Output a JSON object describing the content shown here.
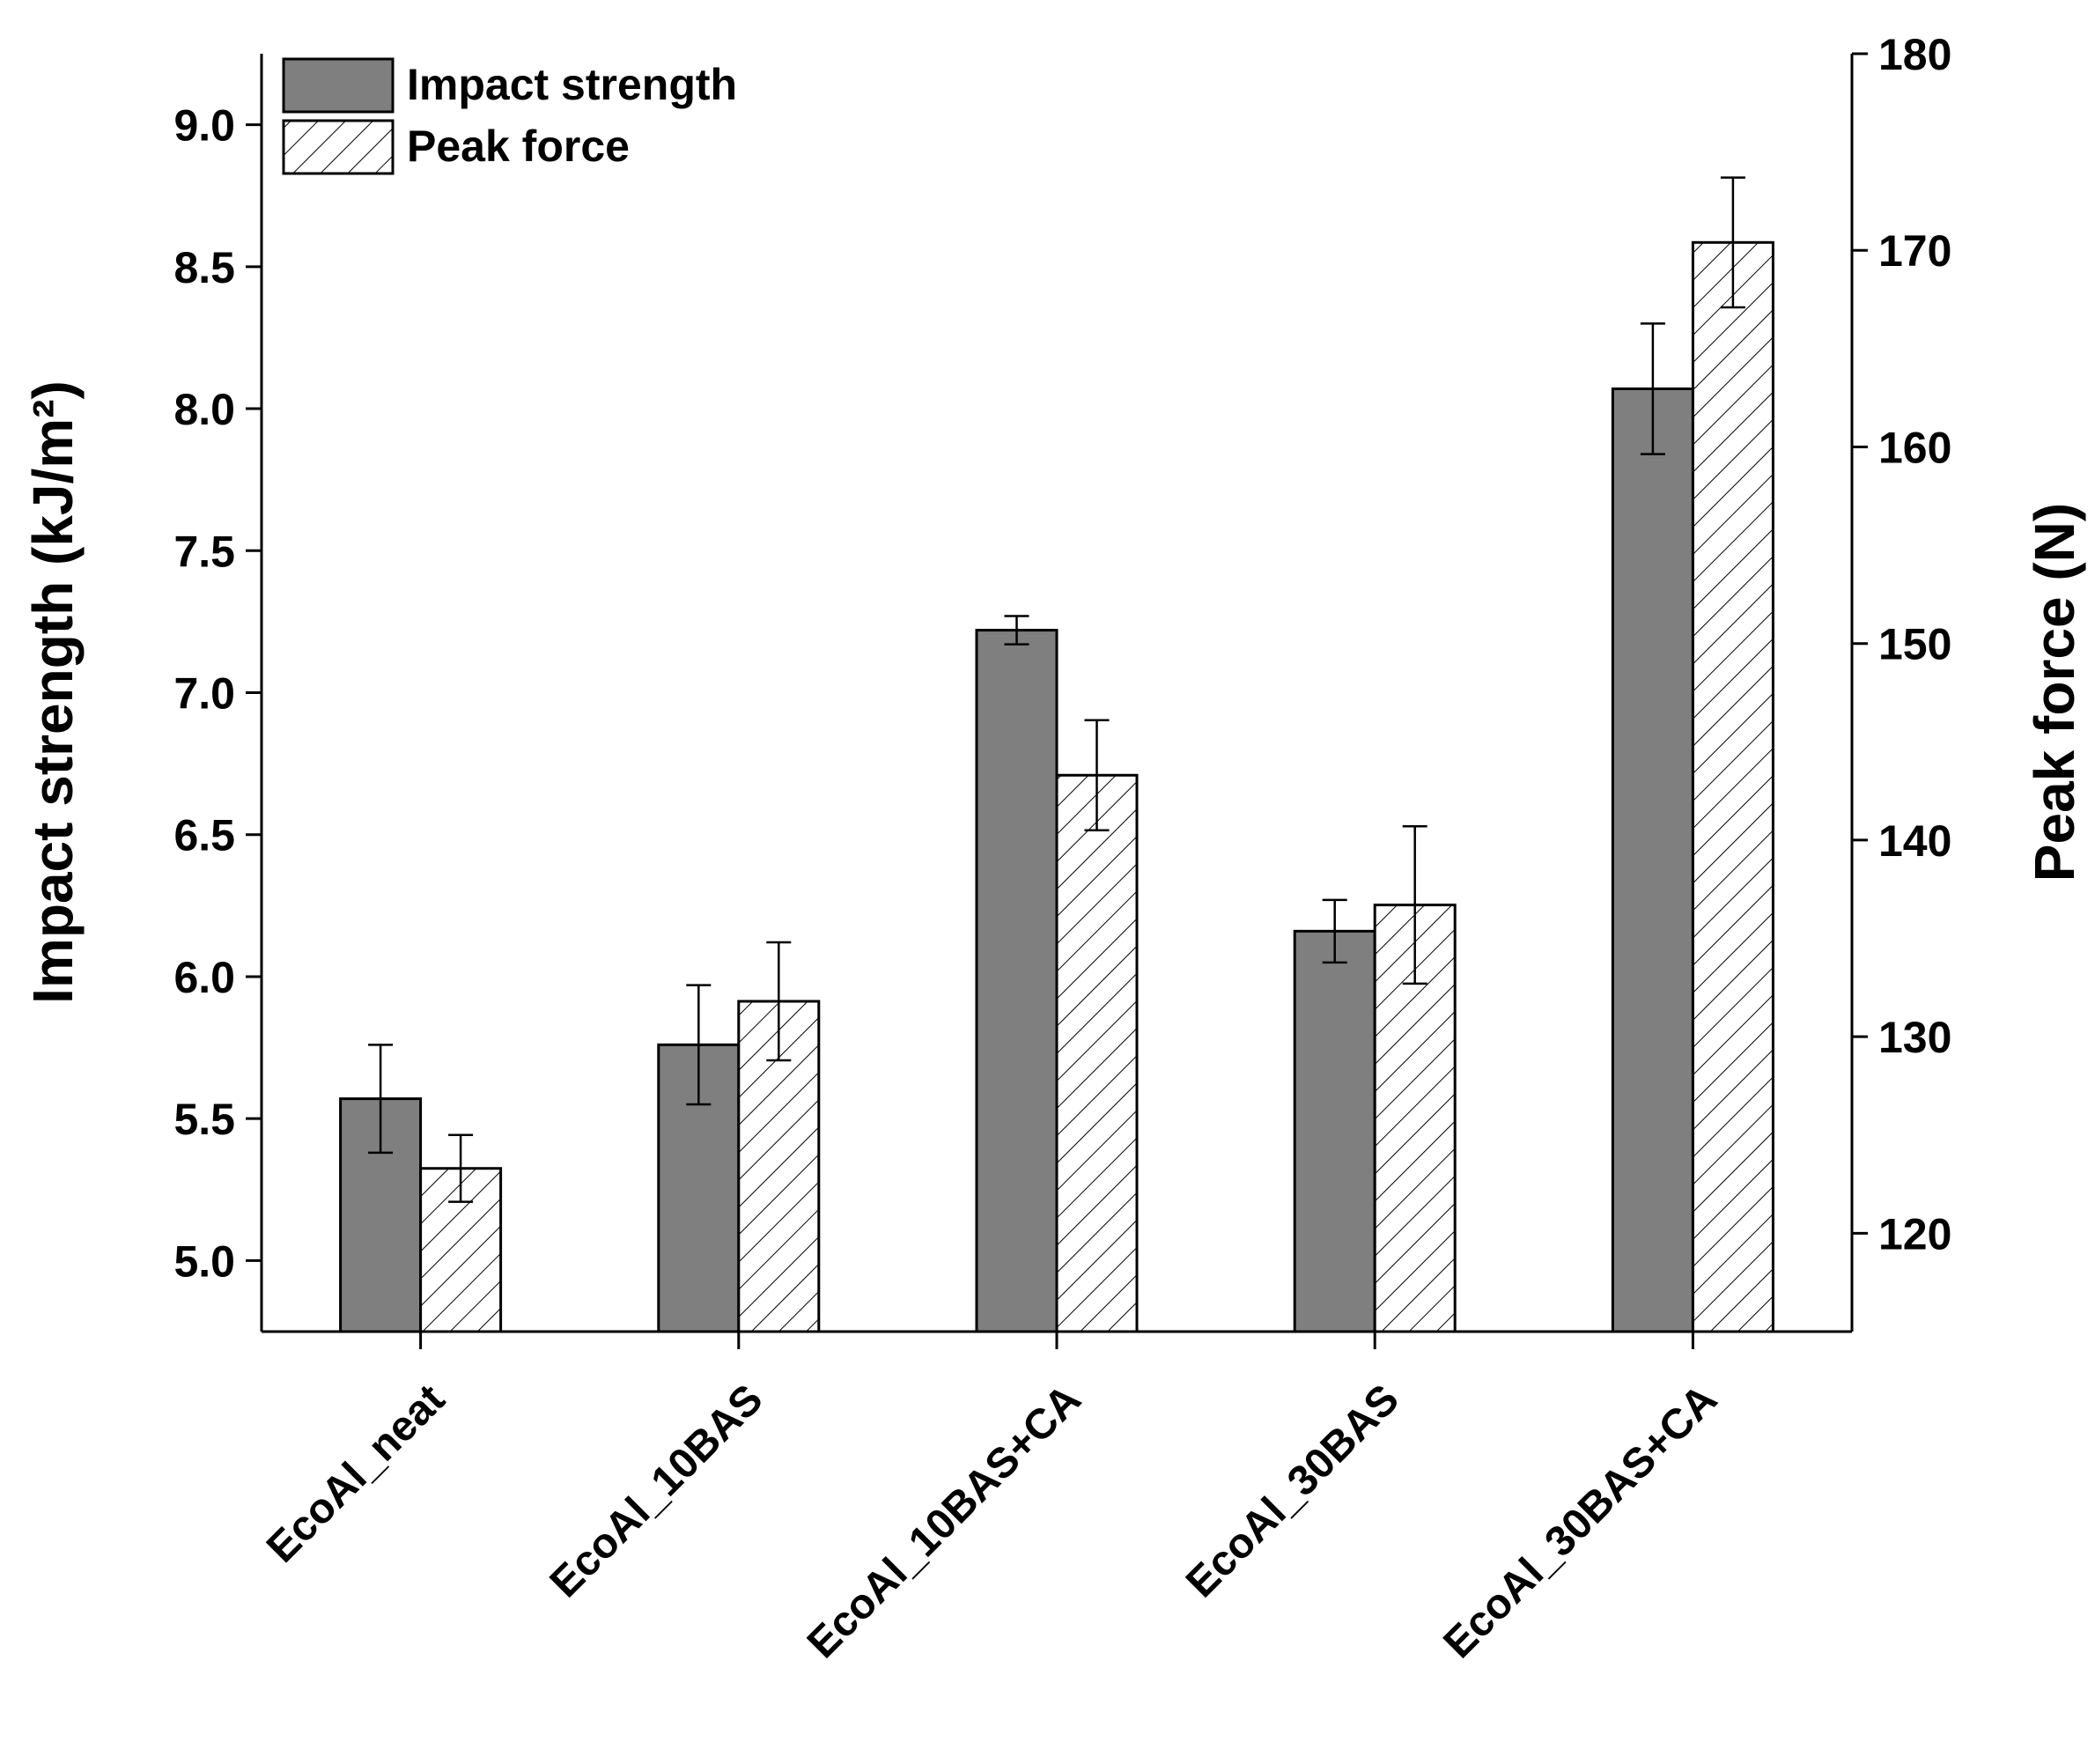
{
  "chart_data": {
    "type": "bar",
    "y_label": "Impact strength (kJ/m²)",
    "y2_label": "Peak force (N)",
    "categories": [
      "EcoAl_neat",
      "EcoAl_10BAS",
      "EcoAl_10BAS+CA",
      "EcoAl_30BAS",
      "EcoAl_30BAS+CA"
    ],
    "series": [
      {
        "name": "Impact strength",
        "color": "#7f7f7f",
        "values": [
          5.57,
          5.76,
          7.22,
          6.16,
          8.07
        ],
        "errors": [
          0.19,
          0.21,
          0.05,
          0.11,
          0.23
        ]
      },
      {
        "name": "Peak force",
        "color": "#ffffff",
        "hatch": true,
        "axis": "y2",
        "values": [
          123.3,
          131.8,
          143.3,
          136.7,
          170.4
        ],
        "errors": [
          1.7,
          3.0,
          2.8,
          4.0,
          3.3
        ]
      }
    ],
    "ylim": [
      4.75,
      9.25
    ],
    "yticks": [
      {
        "value": 5,
        "label": "5.0"
      },
      5.5,
      {
        "value": 6,
        "label": "6.0"
      },
      6.5,
      {
        "value": 7,
        "label": "7.0"
      },
      7.5,
      {
        "value": 8,
        "label": "8.0"
      },
      8.5,
      {
        "value": 9,
        "label": "9.0"
      }
    ],
    "y2lim": [
      115,
      180
    ],
    "y2ticks": [
      120,
      130,
      140,
      150,
      160,
      170,
      180
    ],
    "legend": "upper-left"
  }
}
